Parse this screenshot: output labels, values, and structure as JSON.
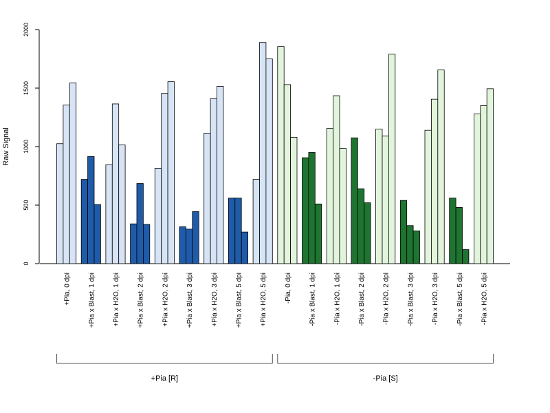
{
  "chart_data": {
    "type": "bar",
    "ylabel": "Raw Signal",
    "ylim": [
      0,
      2000
    ],
    "yticks": [
      0,
      500,
      1000,
      1500,
      2000
    ],
    "grid": false,
    "categories": [
      "+Pia, 0 dpi",
      "+Pia x Blast, 1 dpi",
      "+Pia x H2O, 1 dpi",
      "+Pia x Blast, 2 dpi",
      "+Pia x H2O, 2 dpi",
      "+Pia x Blast, 3 dpi",
      "+Pia x H2O, 3 dpi",
      "+Pia x Blast, 5 dpi",
      "+Pia x H2O, 5 dpi",
      "-Pia, 0 dpi",
      "-Pia x Blast, 1 dpi",
      "-Pia x H2O, 1 dpi",
      "-Pia x Blast, 2 dpi",
      "-Pia x H2O, 2 dpi",
      "-Pia x Blast, 3 dpi",
      "-Pia x H2O, 3 dpi",
      "-Pia x Blast, 5 dpi",
      "-Pia x H2O, 5 dpi"
    ],
    "bar_colors": [
      "#d6e4f5",
      "#1f5ba8",
      "#d6e4f5",
      "#1f5ba8",
      "#d6e4f5",
      "#1f5ba8",
      "#d6e4f5",
      "#1f5ba8",
      "#d6e4f5",
      "#e2f5dc",
      "#1e7430",
      "#e2f5dc",
      "#1e7430",
      "#e2f5dc",
      "#1e7430",
      "#e2f5dc",
      "#1e7430",
      "#e2f5dc"
    ],
    "replicates": [
      [
        1025,
        1355,
        1545
      ],
      [
        720,
        915,
        505
      ],
      [
        845,
        1365,
        1015
      ],
      [
        340,
        685,
        335
      ],
      [
        815,
        1455,
        1555
      ],
      [
        315,
        295,
        445
      ],
      [
        1115,
        1410,
        1515
      ],
      [
        560,
        560,
        270
      ],
      [
        720,
        1890,
        1750
      ],
      [
        1855,
        1530,
        1080
      ],
      [
        905,
        950,
        510
      ],
      [
        1155,
        1435,
        985
      ],
      [
        1075,
        640,
        520
      ],
      [
        1150,
        1090,
        1790
      ],
      [
        540,
        325,
        280
      ],
      [
        1140,
        1405,
        1655
      ],
      [
        560,
        480,
        120
      ],
      [
        1280,
        1350,
        1495
      ]
    ],
    "groups": [
      {
        "label": "+Pia [R]",
        "start": 0,
        "end": 8
      },
      {
        "label": "-Pia [S]",
        "start": 9,
        "end": 17
      }
    ]
  }
}
